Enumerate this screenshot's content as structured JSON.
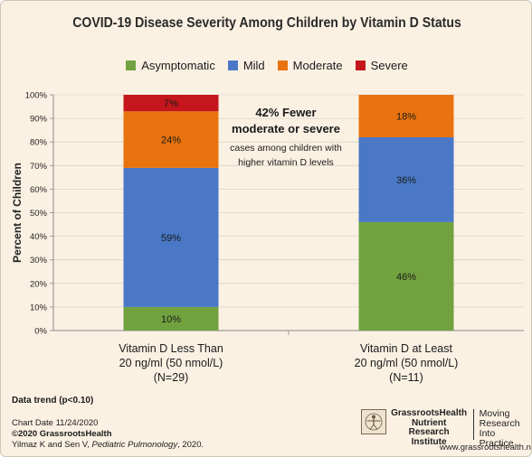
{
  "chart_data": {
    "type": "bar",
    "stacked": true,
    "title": "COVID-19 Disease Severity Among Children by Vitamin D Status",
    "ylabel": "Percent of Children",
    "ylim": [
      0,
      100
    ],
    "yticks": [
      "0%",
      "10%",
      "20%",
      "30%",
      "40%",
      "50%",
      "60%",
      "70%",
      "80%",
      "90%",
      "100%"
    ],
    "grid": true,
    "legend_position": "top",
    "categories": [
      [
        "Vitamin D Less Than",
        "20 ng/ml (50 nmol/L)",
        "(N=29)"
      ],
      [
        "Vitamin D at Least",
        "20 ng/ml (50 nmol/L)",
        "(N=11)"
      ]
    ],
    "series": [
      {
        "name": "Asymptomatic",
        "color": "#72a23f",
        "values": [
          10,
          46
        ],
        "labels": [
          "10%",
          "46%"
        ]
      },
      {
        "name": "Mild",
        "color": "#4a78c6",
        "values": [
          59,
          36
        ],
        "labels": [
          "59%",
          "36%"
        ]
      },
      {
        "name": "Moderate",
        "color": "#e8730f",
        "values": [
          24,
          18
        ],
        "labels": [
          "24%",
          "18%"
        ]
      },
      {
        "name": "Severe",
        "color": "#c4161c",
        "values": [
          7,
          0
        ],
        "labels": [
          "7%",
          ""
        ]
      }
    ],
    "annotation": {
      "line1": "42% Fewer",
      "line2": "moderate or severe",
      "line3": "cases among children with",
      "line4": "higher vitamin D levels"
    }
  },
  "footer": {
    "trend": "Data trend (p<0.10)",
    "chart_date": "Chart Date 11/24/2020",
    "copyright": "©2020 GrassrootsHealth",
    "citation_authors": "Yilmaz K and Sen V, ",
    "citation_journal": "Pediatric Pulmonology",
    "citation_year": ", 2020."
  },
  "logo": {
    "org_line1": "GrassrootsHealth",
    "org_line2": "Nutrient",
    "org_line3": "Research Institute",
    "tagline_line1": "Moving",
    "tagline_line2": "Research",
    "tagline_line3": "Into Practice",
    "url": "www.grassrootshealth.net"
  }
}
